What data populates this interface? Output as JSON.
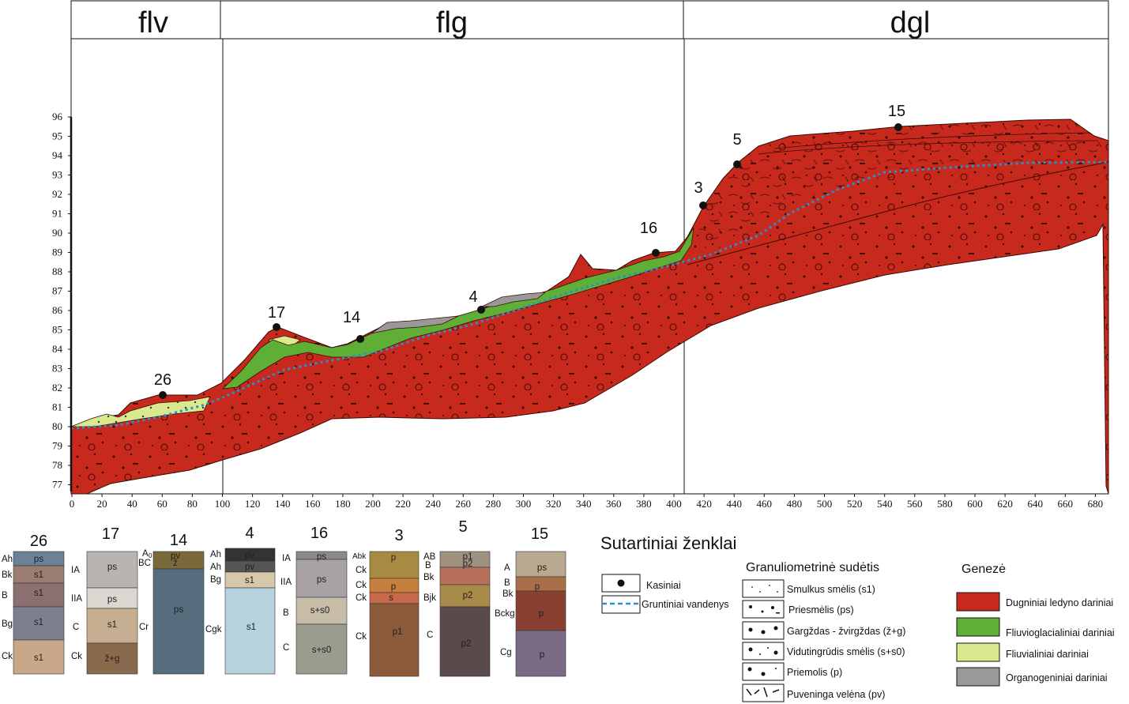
{
  "zones": [
    "flv",
    "flg",
    "dgl"
  ],
  "y_axis_ticks": [
    "96",
    "95",
    "94",
    "93",
    "92",
    "91",
    "90",
    "89",
    "88",
    "87",
    "86",
    "85",
    "84",
    "83",
    "82",
    "81",
    "80",
    "79",
    "78",
    "77"
  ],
  "x_axis_ticks": [
    "0",
    "20",
    "40",
    "60",
    "80",
    "100",
    "120",
    "140",
    "160",
    "180",
    "200",
    "220",
    "240",
    "260",
    "280",
    "300",
    "320",
    "340",
    "360",
    "380",
    "400",
    "420",
    "440",
    "460",
    "480",
    "500",
    "520",
    "540",
    "560",
    "580",
    "600",
    "620",
    "640",
    "660",
    "680"
  ],
  "sites": [
    "26",
    "17",
    "14",
    "4",
    "16",
    "3",
    "5",
    "15"
  ],
  "columns": [
    {
      "title": "26",
      "horizons": [
        "Ah",
        "Bk",
        "B",
        "Bg",
        "Ck"
      ],
      "inlays": [
        "ps",
        "s1",
        "s1",
        "s1",
        "s1"
      ]
    },
    {
      "title": "17",
      "horizons": [
        "IA",
        "IIA",
        "C",
        "Ck"
      ],
      "inlays": [
        "ps",
        "ps",
        "s1",
        "ž+g"
      ]
    },
    {
      "title": "14",
      "horizons": [
        "A",
        "BC",
        "Cr",
        "Cgk"
      ],
      "horizon_sub": "0",
      "inlays": [
        "pv",
        "ž",
        "ps"
      ]
    },
    {
      "title": "4",
      "horizons": [
        "Ah",
        "Ah",
        "Bg",
        "Cgk"
      ],
      "inlays": [
        "pv",
        "pv",
        "s1",
        "s1"
      ]
    },
    {
      "title": "16",
      "horizons": [
        "IA",
        "IIA",
        "B",
        "C"
      ],
      "inlays": [
        "ps",
        "ps",
        "s+s0",
        "s+s0"
      ]
    },
    {
      "title": "3",
      "horizons": [
        "Abk",
        "Ck",
        "Ck",
        "Ck",
        "Ck"
      ],
      "inlays": [
        "p",
        "p",
        "s",
        "p1"
      ]
    },
    {
      "title": "5",
      "horizons": [
        "AB",
        "B",
        "Bk",
        "Bjk",
        "C"
      ],
      "inlays": [
        "p1",
        "p2",
        "p2",
        "p2"
      ]
    },
    {
      "title": "15",
      "horizons": [
        "A",
        "B",
        "Bk",
        "Bckg",
        "Cg"
      ],
      "inlays": [
        "ps",
        "p",
        "p",
        "p"
      ]
    }
  ],
  "legend": {
    "title": "Sutartiniai ženklai",
    "kasiniai": "Kasiniai",
    "gruntiniai": "Gruntiniai vandenys",
    "granulometrine_title": "Granuliometrinė sudėtis",
    "granulometrine": [
      "Smulkus smėlis (s1)",
      "Priesmėlis (ps)",
      "Gargždas - žvirgždas (ž+g)",
      "Vidutingrūdis smėlis (s+s0)",
      "Priemolis (p)",
      "Puveninga velėna (pv)"
    ],
    "geneze_title": "Genezė",
    "geneze": [
      {
        "label": "Dugniniai ledyno dariniai",
        "color": "#c8291d"
      },
      {
        "label": "Fliuvioglacialiniai dariniai",
        "color": "#5fae36"
      },
      {
        "label": "Fliuvialiniai dariniai",
        "color": "#d9ea8e"
      },
      {
        "label": "Organogeniniai dariniai",
        "color": "#999999"
      }
    ]
  },
  "colors": {
    "glacial": "#c8291d",
    "fluvioglacial": "#5fae36",
    "fluvial": "#d9ea8e",
    "organic": "#999999",
    "groundwater": "#2a8fd0"
  }
}
